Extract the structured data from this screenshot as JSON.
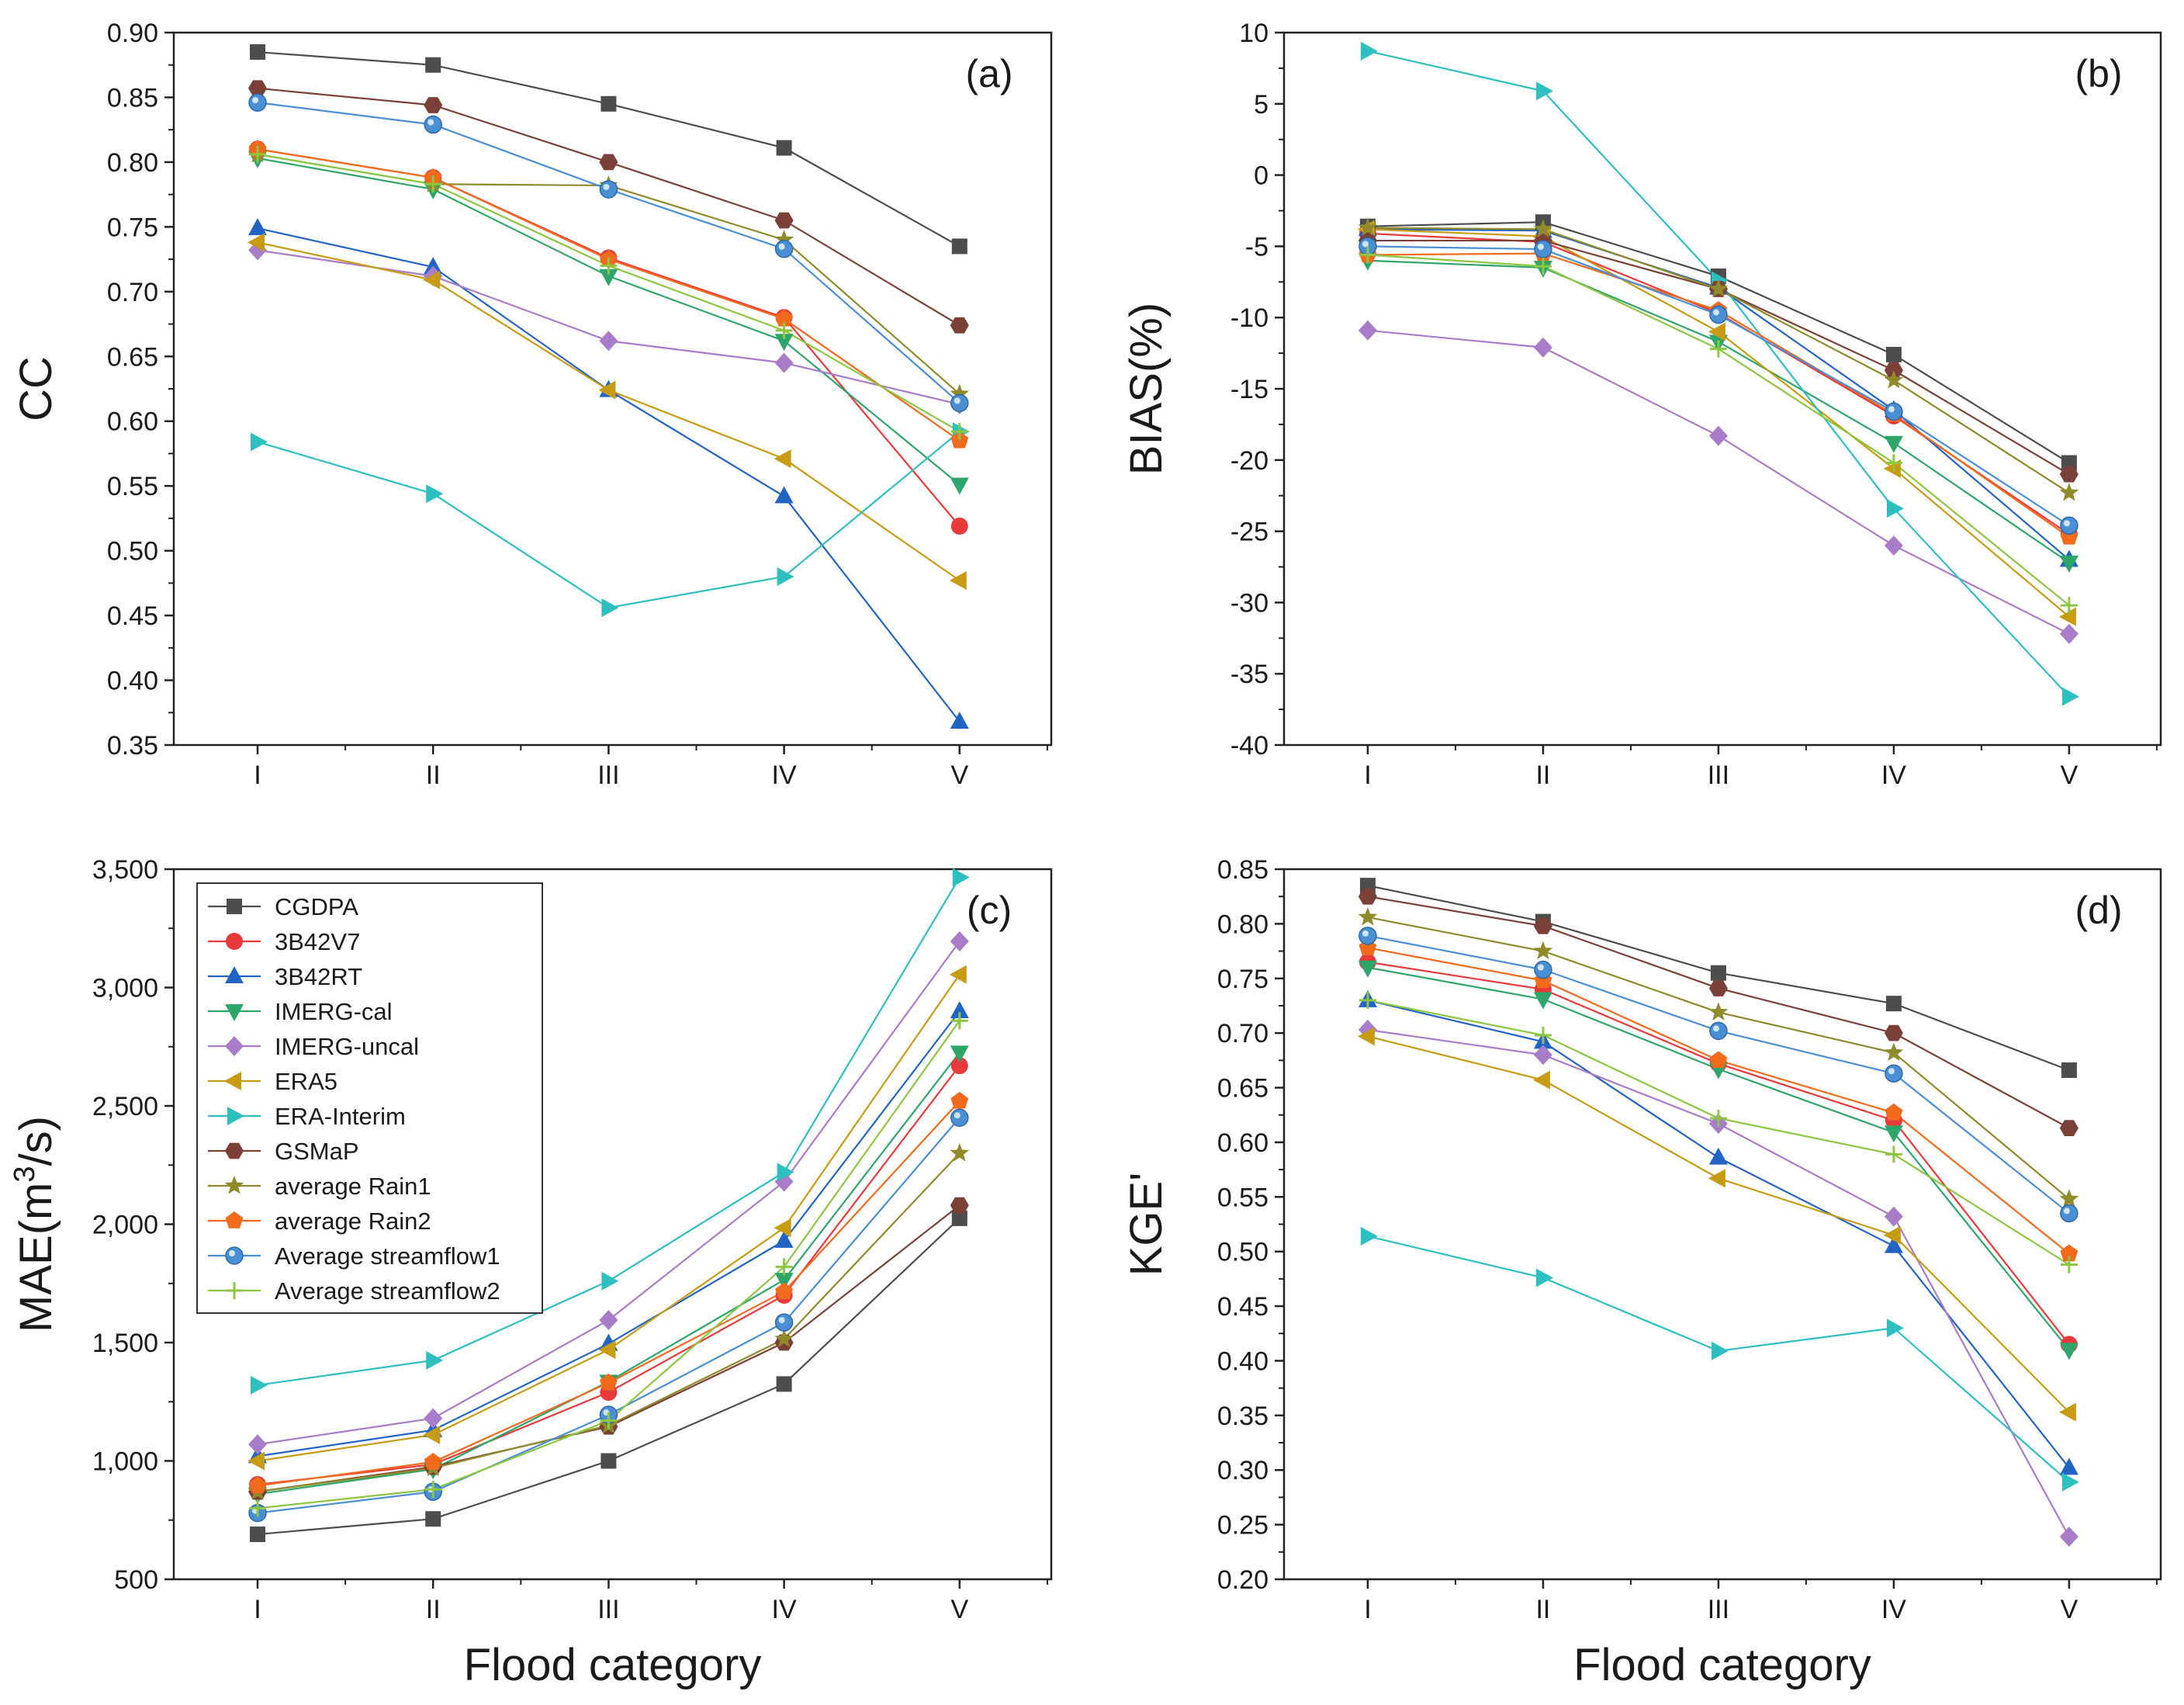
{
  "series_styles": [
    {
      "name": "CGDPA",
      "color": "#4d4d4d",
      "marker": "square"
    },
    {
      "name": "3B42V7",
      "color": "#e83a3a",
      "marker": "circle"
    },
    {
      "name": "3B42RT",
      "color": "#2264c4",
      "marker": "triangle-up"
    },
    {
      "name": "IMERG-cal",
      "color": "#2ea66a",
      "marker": "triangle-down"
    },
    {
      "name": "IMERG-uncal",
      "color": "#a87cc9",
      "marker": "diamond"
    },
    {
      "name": "ERA5",
      "color": "#c89b14",
      "marker": "triangle-left"
    },
    {
      "name": "ERA-Interim",
      "color": "#2ebfc1",
      "marker": "triangle-right"
    },
    {
      "name": "GSMaP",
      "color": "#7b4038",
      "marker": "hexagon"
    },
    {
      "name": "average Rain1",
      "color": "#8f8a2a",
      "marker": "star"
    },
    {
      "name": "average Rain2",
      "color": "#f26a1b",
      "marker": "pentagon"
    },
    {
      "name": "Average streamflow1",
      "color": "#4a8fd4",
      "marker": "sphere"
    },
    {
      "name": "Average streamflow2",
      "color": "#8dc641",
      "marker": "plus"
    }
  ],
  "chart_data": [
    {
      "type": "line",
      "panel_label": "(a)",
      "ylabel": "CC",
      "xlabel": "",
      "categories": [
        "I",
        "II",
        "III",
        "IV",
        "V"
      ],
      "ylim": [
        0.35,
        0.9
      ],
      "yticks": [
        "0.35",
        "0.40",
        "0.45",
        "0.50",
        "0.55",
        "0.60",
        "0.65",
        "0.70",
        "0.75",
        "0.80",
        "0.85",
        "0.90"
      ],
      "series": [
        {
          "name": "CGDPA",
          "values": [
            0.885,
            0.875,
            0.845,
            0.811,
            0.735
          ]
        },
        {
          "name": "3B42V7",
          "values": [
            0.81,
            0.788,
            0.726,
            0.68,
            0.519
          ]
        },
        {
          "name": "3B42RT",
          "values": [
            0.749,
            0.719,
            0.624,
            0.542,
            0.368
          ]
        },
        {
          "name": "IMERG-cal",
          "values": [
            0.803,
            0.779,
            0.712,
            0.662,
            0.551
          ]
        },
        {
          "name": "IMERG-uncal",
          "values": [
            0.732,
            0.712,
            0.662,
            0.645,
            0.613
          ]
        },
        {
          "name": "ERA5",
          "values": [
            0.738,
            0.709,
            0.624,
            0.571,
            0.477
          ]
        },
        {
          "name": "ERA-Interim",
          "values": [
            0.584,
            0.544,
            0.456,
            0.48,
            0.592
          ]
        },
        {
          "name": "GSMaP",
          "values": [
            0.857,
            0.844,
            0.8,
            0.755,
            0.674
          ]
        },
        {
          "name": "average Rain1",
          "values": [
            0.806,
            0.783,
            0.782,
            0.74,
            0.621
          ]
        },
        {
          "name": "average Rain2",
          "values": [
            0.81,
            0.788,
            0.725,
            0.679,
            0.585
          ]
        },
        {
          "name": "Average streamflow1",
          "values": [
            0.846,
            0.829,
            0.779,
            0.733,
            0.614
          ]
        },
        {
          "name": "Average streamflow2",
          "values": [
            0.806,
            0.783,
            0.72,
            0.67,
            0.592
          ]
        }
      ]
    },
    {
      "type": "line",
      "panel_label": "(b)",
      "ylabel": "BIAS(%)",
      "xlabel": "",
      "categories": [
        "I",
        "II",
        "III",
        "IV",
        "V"
      ],
      "ylim": [
        -40,
        10
      ],
      "yticks": [
        "-40",
        "-35",
        "-30",
        "-25",
        "-20",
        "-15",
        "-10",
        "-5",
        "0",
        "5",
        "10"
      ],
      "series": [
        {
          "name": "CGDPA",
          "values": [
            -3.6,
            -3.3,
            -7.1,
            -12.6,
            -20.2
          ]
        },
        {
          "name": "3B42V7",
          "values": [
            -4.1,
            -4.7,
            -9.7,
            -16.9,
            -25.2
          ]
        },
        {
          "name": "3B42RT",
          "values": [
            -3.8,
            -3.9,
            -7.9,
            -16.5,
            -27.0
          ]
        },
        {
          "name": "IMERG-cal",
          "values": [
            -6.0,
            -6.5,
            -11.7,
            -18.8,
            -27.2
          ]
        },
        {
          "name": "IMERG-uncal",
          "values": [
            -10.9,
            -12.1,
            -18.3,
            -26.0,
            -32.2
          ]
        },
        {
          "name": "ERA5",
          "values": [
            -3.8,
            -4.3,
            -11.0,
            -20.6,
            -31.0
          ]
        },
        {
          "name": "ERA-Interim",
          "values": [
            8.7,
            5.9,
            -7.4,
            -23.4,
            -36.6
          ]
        },
        {
          "name": "GSMaP",
          "values": [
            -4.6,
            -4.6,
            -8.0,
            -13.7,
            -21.0
          ]
        },
        {
          "name": "average Rain1",
          "values": [
            -3.7,
            -3.8,
            -8.0,
            -14.4,
            -22.3
          ]
        },
        {
          "name": "average Rain2",
          "values": [
            -5.6,
            -5.5,
            -9.5,
            -16.8,
            -25.4
          ]
        },
        {
          "name": "Average streamflow1",
          "values": [
            -5.0,
            -5.2,
            -9.8,
            -16.6,
            -24.6
          ]
        },
        {
          "name": "Average streamflow2",
          "values": [
            -5.6,
            -6.4,
            -12.2,
            -20.2,
            -30.2
          ]
        }
      ]
    },
    {
      "type": "line",
      "panel_label": "(c)",
      "ylabel": "MAE(m",
      "ylabel_sup": "3",
      "ylabel_end": "/s)",
      "xlabel": "Flood category",
      "categories": [
        "I",
        "II",
        "III",
        "IV",
        "V"
      ],
      "ylim": [
        500,
        3500
      ],
      "yticks": [
        "500",
        "1,000",
        "1,500",
        "2,000",
        "2,500",
        "3,000",
        "3,500"
      ],
      "series": [
        {
          "name": "CGDPA",
          "values": [
            690,
            755,
            1000,
            1325,
            2025
          ]
        },
        {
          "name": "3B42V7",
          "values": [
            900,
            985,
            1290,
            1700,
            2670
          ]
        },
        {
          "name": "3B42RT",
          "values": [
            1020,
            1130,
            1495,
            1930,
            2900
          ]
        },
        {
          "name": "IMERG-cal",
          "values": [
            860,
            965,
            1335,
            1765,
            2725
          ]
        },
        {
          "name": "IMERG-uncal",
          "values": [
            1070,
            1180,
            1595,
            2180,
            3195
          ]
        },
        {
          "name": "ERA5",
          "values": [
            1000,
            1110,
            1470,
            1985,
            3055
          ]
        },
        {
          "name": "ERA-Interim",
          "values": [
            1320,
            1425,
            1760,
            2220,
            3465
          ]
        },
        {
          "name": "GSMaP",
          "values": [
            870,
            975,
            1145,
            1500,
            2080
          ]
        },
        {
          "name": "average Rain1",
          "values": [
            870,
            970,
            1150,
            1515,
            2300
          ]
        },
        {
          "name": "average Rain2",
          "values": [
            895,
            995,
            1330,
            1715,
            2520
          ]
        },
        {
          "name": "Average streamflow1",
          "values": [
            780,
            870,
            1195,
            1585,
            2450
          ]
        },
        {
          "name": "Average streamflow2",
          "values": [
            800,
            880,
            1170,
            1820,
            2860
          ]
        }
      ]
    },
    {
      "type": "line",
      "panel_label": "(d)",
      "ylabel": "KGE'",
      "xlabel": "Flood category",
      "categories": [
        "I",
        "II",
        "III",
        "IV",
        "V"
      ],
      "ylim": [
        0.2,
        0.85
      ],
      "yticks": [
        "0.20",
        "0.25",
        "0.30",
        "0.35",
        "0.40",
        "0.45",
        "0.50",
        "0.55",
        "0.60",
        "0.65",
        "0.70",
        "0.75",
        "0.80",
        "0.85"
      ],
      "series": [
        {
          "name": "CGDPA",
          "values": [
            0.835,
            0.802,
            0.755,
            0.727,
            0.666
          ]
        },
        {
          "name": "3B42V7",
          "values": [
            0.765,
            0.74,
            0.672,
            0.62,
            0.415
          ]
        },
        {
          "name": "3B42RT",
          "values": [
            0.73,
            0.692,
            0.586,
            0.505,
            0.302
          ]
        },
        {
          "name": "IMERG-cal",
          "values": [
            0.76,
            0.731,
            0.667,
            0.609,
            0.41
          ]
        },
        {
          "name": "IMERG-uncal",
          "values": [
            0.703,
            0.68,
            0.617,
            0.532,
            0.239
          ]
        },
        {
          "name": "ERA5",
          "values": [
            0.697,
            0.657,
            0.567,
            0.515,
            0.353
          ]
        },
        {
          "name": "ERA-Interim",
          "values": [
            0.514,
            0.476,
            0.409,
            0.43,
            0.289
          ]
        },
        {
          "name": "GSMaP",
          "values": [
            0.825,
            0.798,
            0.741,
            0.7,
            0.613
          ]
        },
        {
          "name": "average Rain1",
          "values": [
            0.806,
            0.775,
            0.719,
            0.682,
            0.548
          ]
        },
        {
          "name": "average Rain2",
          "values": [
            0.778,
            0.748,
            0.675,
            0.627,
            0.498
          ]
        },
        {
          "name": "Average streamflow1",
          "values": [
            0.789,
            0.758,
            0.702,
            0.663,
            0.535
          ]
        },
        {
          "name": "Average streamflow2",
          "values": [
            0.73,
            0.698,
            0.622,
            0.589,
            0.488
          ]
        }
      ]
    }
  ],
  "legend": {
    "entries": [
      "CGDPA",
      "3B42V7",
      "3B42RT",
      "IMERG-cal",
      "IMERG-uncal",
      "ERA5",
      "ERA-Interim",
      "GSMaP",
      "average Rain1",
      "average Rain2",
      "Average streamflow1",
      "Average streamflow2"
    ]
  }
}
